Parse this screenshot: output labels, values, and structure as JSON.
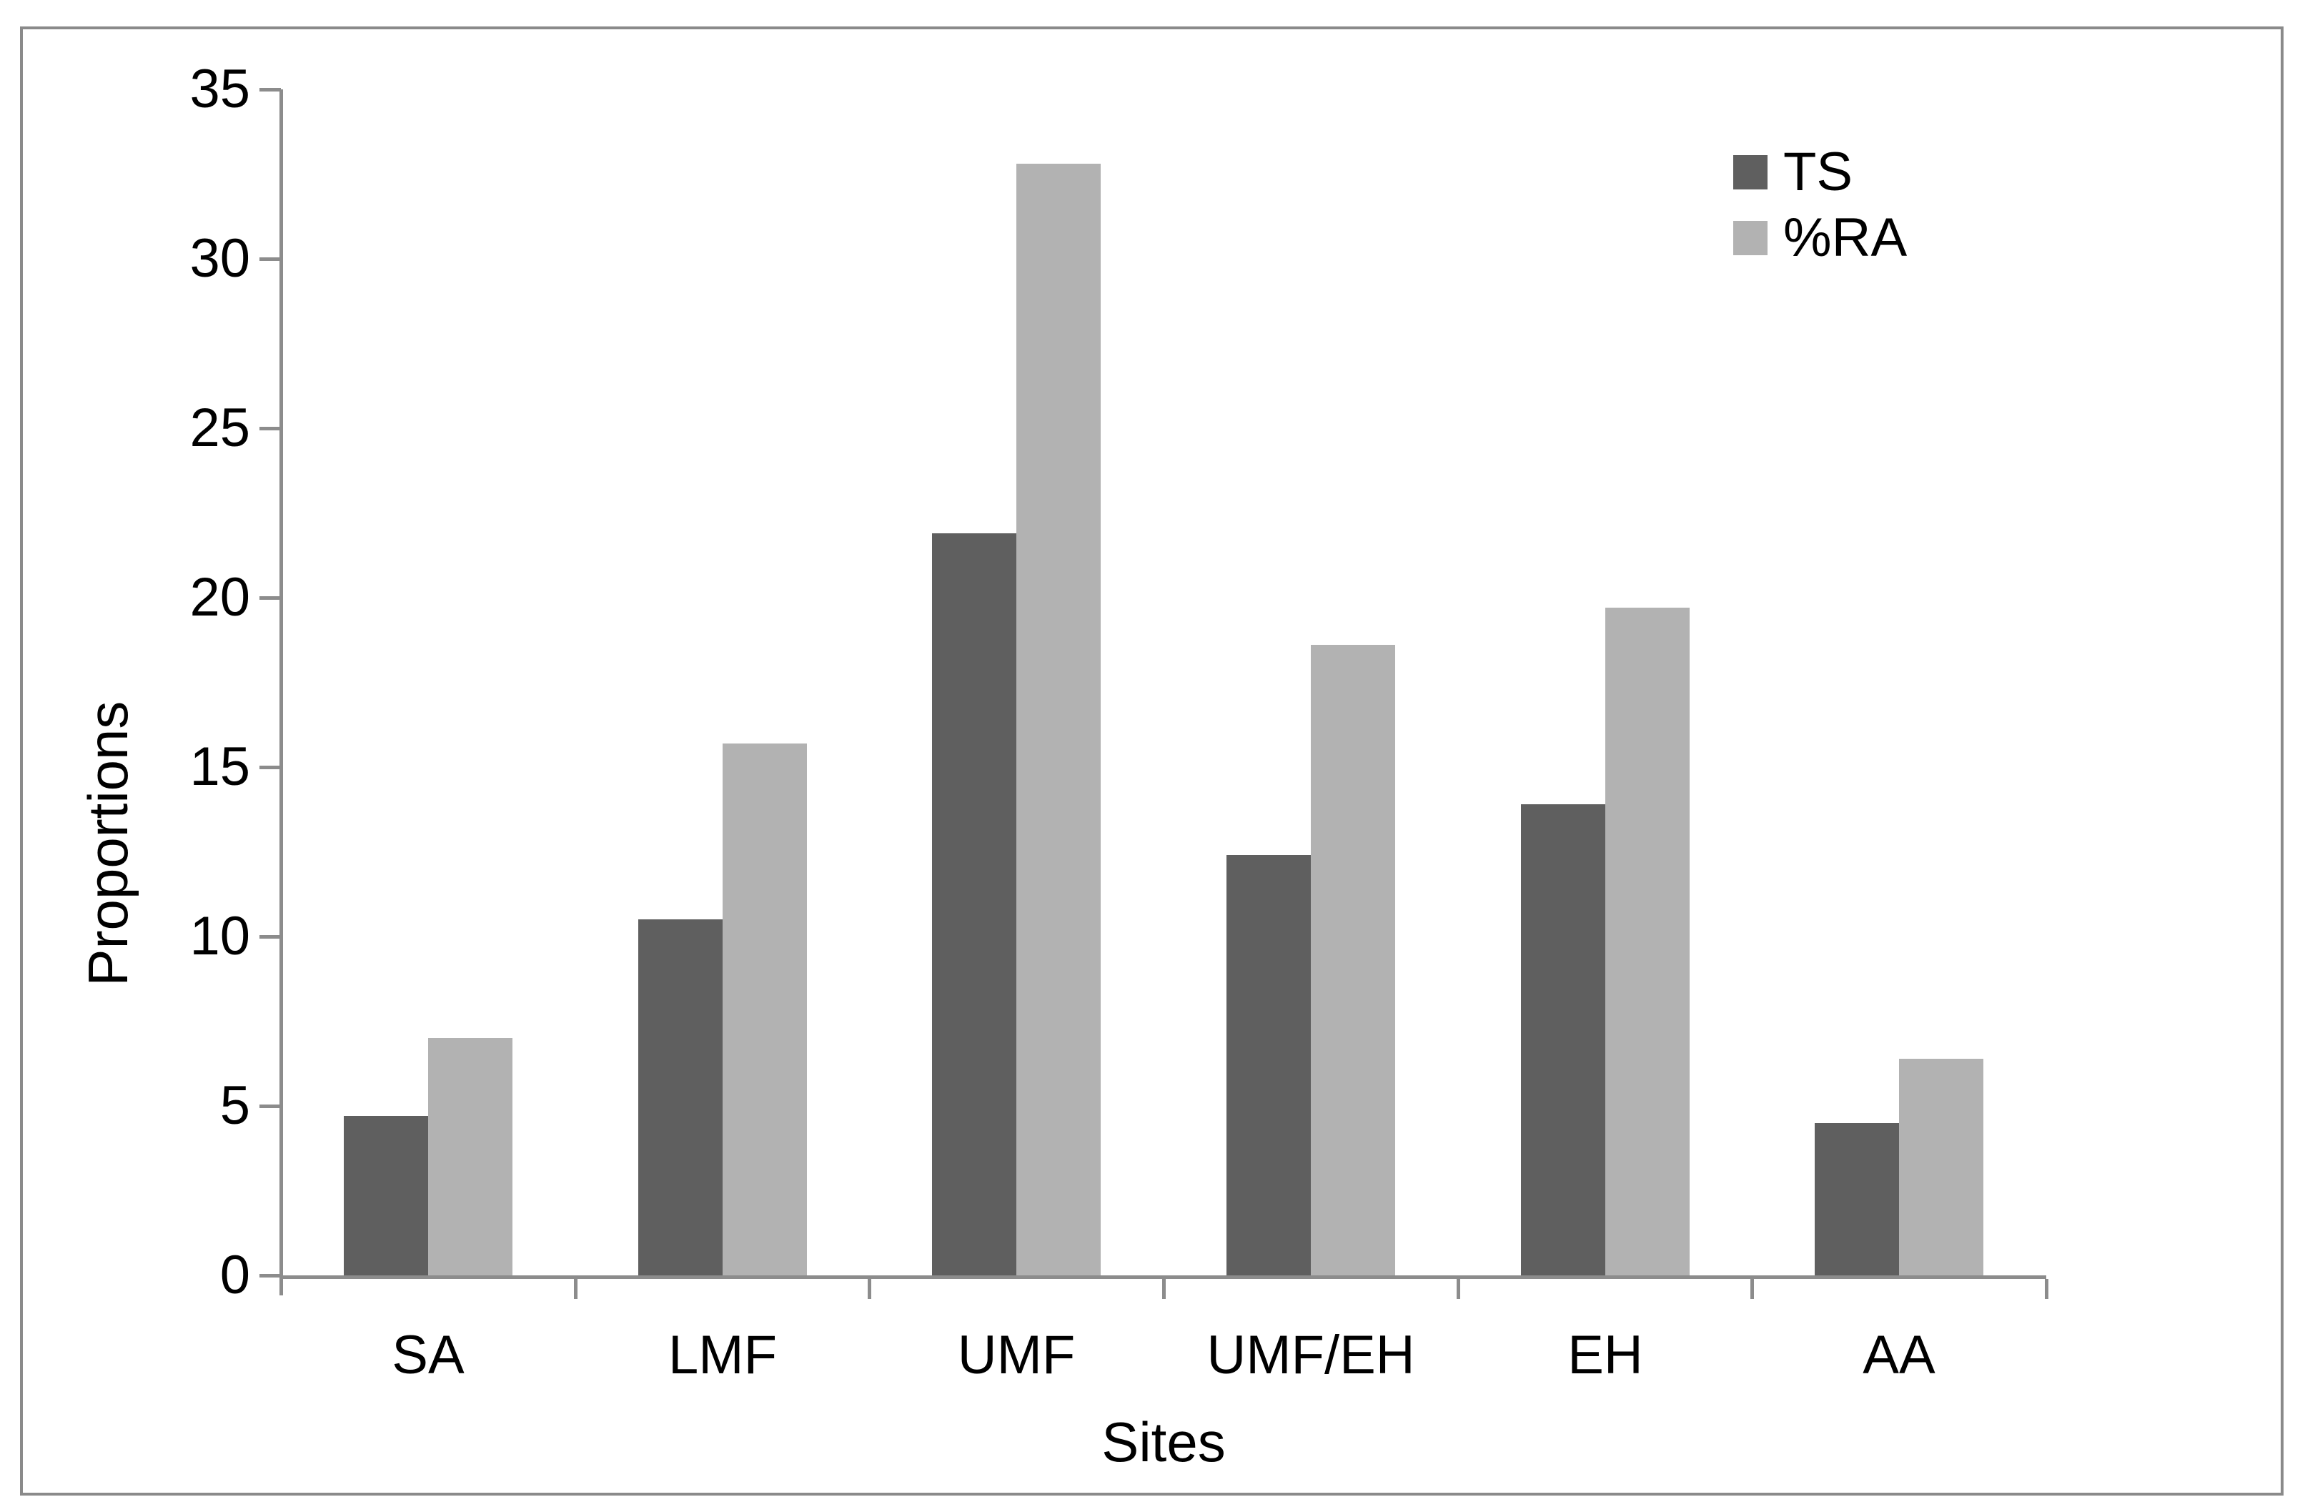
{
  "chart_data": {
    "type": "bar",
    "title": "",
    "xlabel": "Sites",
    "ylabel": "Proportions",
    "categories": [
      "SA",
      "LMF",
      "UMF",
      "UMF/EH",
      "EH",
      "AA"
    ],
    "series": [
      {
        "name": "TS",
        "color": "#5f5f5f",
        "values": [
          4.7,
          10.5,
          21.9,
          12.4,
          13.9,
          4.5
        ]
      },
      {
        "name": "%RA",
        "color": "#b2b2b2",
        "values": [
          7.0,
          15.7,
          32.8,
          18.6,
          19.7,
          6.4
        ]
      }
    ],
    "ylim": [
      0,
      35
    ],
    "yticks": [
      35,
      30,
      25,
      20,
      15,
      10,
      5,
      0
    ],
    "legend_position": "top-right",
    "grid": false,
    "axis_color": "#8c8c8c",
    "frame_color": "#8a8a8a",
    "text_color": "#000000"
  }
}
